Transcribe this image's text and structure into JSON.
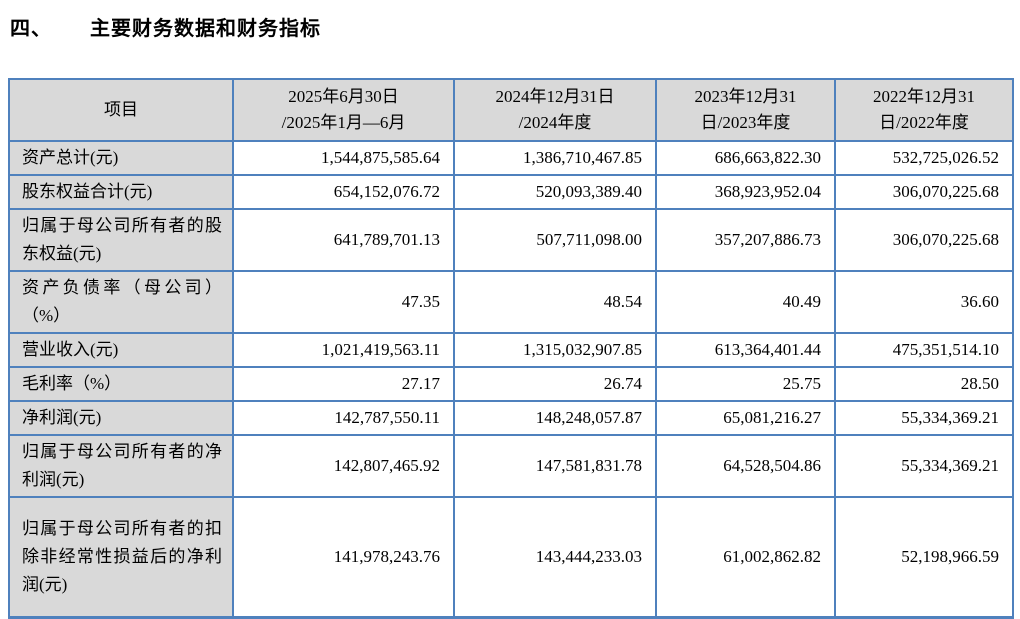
{
  "page": {
    "title_number": "四、",
    "title_text": "主要财务数据和财务指标"
  },
  "colors": {
    "border": "#4F81BD",
    "header_bg": "#D9D9D9",
    "text": "#000000"
  },
  "table": {
    "columns": [
      "项目",
      "2025年6月30日\n/2025年1月—6月",
      "2024年12月31日\n/2024年度",
      "2023年12月31\n日/2023年度",
      "2022年12月31\n日/2022年度"
    ],
    "rows": [
      {
        "label": "资产总计(元)",
        "values": [
          "1,544,875,585.64",
          "1,386,710,467.85",
          "686,663,822.30",
          "532,725,026.52"
        ]
      },
      {
        "label": "股东权益合计(元)",
        "values": [
          "654,152,076.72",
          "520,093,389.40",
          "368,923,952.04",
          "306,070,225.68"
        ]
      },
      {
        "label": "归属于母公司所有者的股东权益(元)",
        "values": [
          "641,789,701.13",
          "507,711,098.00",
          "357,207,886.73",
          "306,070,225.68"
        ]
      },
      {
        "label": "资产负债率（母公司）（%）",
        "values": [
          "47.35",
          "48.54",
          "40.49",
          "36.60"
        ]
      },
      {
        "label": "营业收入(元)",
        "values": [
          "1,021,419,563.11",
          "1,315,032,907.85",
          "613,364,401.44",
          "475,351,514.10"
        ]
      },
      {
        "label": "毛利率（%）",
        "values": [
          "27.17",
          "26.74",
          "25.75",
          "28.50"
        ]
      },
      {
        "label": "净利润(元)",
        "values": [
          "142,787,550.11",
          "148,248,057.87",
          "65,081,216.27",
          "55,334,369.21"
        ]
      },
      {
        "label": "归属于母公司所有者的净利润(元)",
        "values": [
          "142,807,465.92",
          "147,581,831.78",
          "64,528,504.86",
          "55,334,369.21"
        ]
      },
      {
        "label": "归属于母公司所有者的扣除非经常性损益后的净利润(元)",
        "values": [
          "141,978,243.76",
          "143,444,233.03",
          "61,002,862.82",
          "52,198,966.59"
        ]
      }
    ]
  }
}
